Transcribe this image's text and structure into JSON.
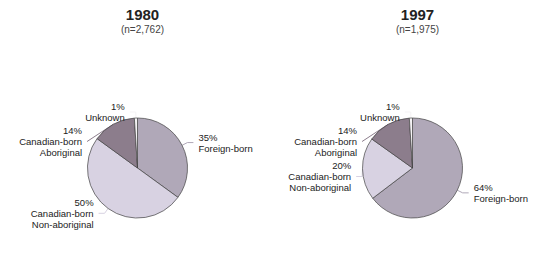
{
  "chart_data": [
    {
      "type": "pie",
      "title": "1980",
      "subtitle": "(n=2,762)",
      "categories": [
        "Foreign-born",
        "Canadian-born\nNon-aboriginal",
        "Canadian-born\nAboriginal",
        "Unknown"
      ],
      "values": [
        35,
        50,
        14,
        1
      ],
      "value_labels": [
        "35%",
        "50%",
        "14%",
        "1%"
      ],
      "colors": [
        "#b0a8b8",
        "#d8d2e2",
        "#8c7d8c",
        "#f5f3f5"
      ],
      "data_labels": true
    },
    {
      "type": "pie",
      "title": "1997",
      "subtitle": "(n=1,975)",
      "categories": [
        "Foreign-born",
        "Canadian-born\nNon-aboriginal",
        "Canadian-born\nAboriginal",
        "Unknown"
      ],
      "values": [
        64,
        20,
        14,
        1
      ],
      "value_labels": [
        "64%",
        "20%",
        "14%",
        "1%"
      ],
      "colors": [
        "#b0a8b8",
        "#d8d2e2",
        "#8c7d8c",
        "#f5f3f5"
      ],
      "data_labels": true
    }
  ]
}
